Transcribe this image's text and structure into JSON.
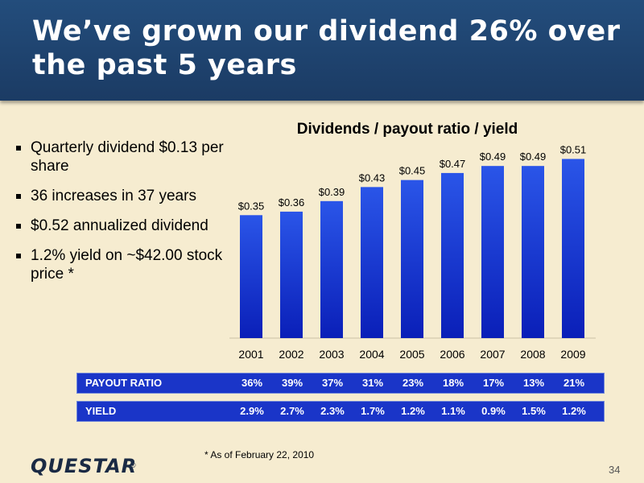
{
  "slide": {
    "title": "We’ve grown our dividend 26% over the past 5 years",
    "footnote": "* As of February 22, 2010",
    "logo": "QUESTAR",
    "logo_mark": "®",
    "page_number": "34"
  },
  "bullets": [
    "Quarterly dividend $0.13 per share",
    "36 increases in 37 years",
    "$0.52 annualized dividend",
    "1.2% yield on ~$42.00 stock price *"
  ],
  "chart_data": {
    "type": "bar",
    "title": "Dividends / payout ratio / yield",
    "categories": [
      "2001",
      "2002",
      "2003",
      "2004",
      "2005",
      "2006",
      "2007",
      "2008",
      "2009"
    ],
    "values": [
      0.35,
      0.36,
      0.39,
      0.43,
      0.45,
      0.47,
      0.49,
      0.49,
      0.51
    ],
    "data_labels": [
      "$0.35",
      "$0.36",
      "$0.39",
      "$0.43",
      "$0.45",
      "$0.47",
      "$0.49",
      "$0.49",
      "$0.51"
    ],
    "ylim": [
      0,
      0.55
    ],
    "colors": {
      "bar_top": "#2a55e8",
      "bar_bottom": "#0a1fb8"
    },
    "table": [
      {
        "label": "PAYOUT RATIO",
        "values": [
          "36%",
          "39%",
          "37%",
          "31%",
          "23%",
          "18%",
          "17%",
          "13%",
          "21%"
        ]
      },
      {
        "label": "YIELD",
        "values": [
          "2.9%",
          "2.7%",
          "2.3%",
          "1.7%",
          "1.2%",
          "1.1%",
          "0.9%",
          "1.5%",
          "1.2%"
        ]
      }
    ]
  }
}
